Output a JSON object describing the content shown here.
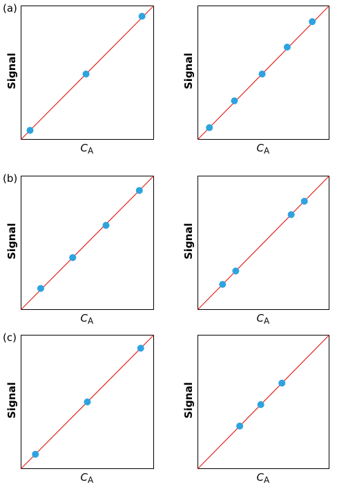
{
  "chart_data": [
    {
      "type": "scatter",
      "row": "(a)",
      "ylabel": "Signal",
      "xlabel": "C",
      "xlabel_sub": "A",
      "line": "y = x",
      "points": [
        [
          0.07,
          0.07
        ],
        [
          0.49,
          0.49
        ],
        [
          0.91,
          0.92
        ]
      ],
      "xlim": [
        0,
        1
      ],
      "ylim": [
        0,
        1
      ]
    },
    {
      "type": "scatter",
      "row": "",
      "ylabel": "Signal",
      "xlabel": "C",
      "xlabel_sub": "A",
      "line": "y = x",
      "points": [
        [
          0.09,
          0.09
        ],
        [
          0.28,
          0.29
        ],
        [
          0.49,
          0.49
        ],
        [
          0.68,
          0.69
        ],
        [
          0.87,
          0.88
        ]
      ],
      "xlim": [
        0,
        1
      ],
      "ylim": [
        0,
        1
      ]
    },
    {
      "type": "scatter",
      "row": "(b)",
      "ylabel": "Signal",
      "xlabel": "C",
      "xlabel_sub": "A",
      "line": "y = x",
      "points": [
        [
          0.15,
          0.16
        ],
        [
          0.39,
          0.39
        ],
        [
          0.64,
          0.63
        ],
        [
          0.89,
          0.89
        ]
      ],
      "xlim": [
        0,
        1
      ],
      "ylim": [
        0,
        1
      ]
    },
    {
      "type": "scatter",
      "row": "",
      "ylabel": "Signal",
      "xlabel": "C",
      "xlabel_sub": "A",
      "line": "y = x",
      "points": [
        [
          0.19,
          0.19
        ],
        [
          0.29,
          0.29
        ],
        [
          0.71,
          0.71
        ],
        [
          0.81,
          0.81
        ]
      ],
      "xlim": [
        0,
        1
      ],
      "ylim": [
        0,
        1
      ]
    },
    {
      "type": "scatter",
      "row": "(c)",
      "ylabel": "Signal",
      "xlabel": "C",
      "xlabel_sub": "A",
      "line": "y = x",
      "points": [
        [
          0.11,
          0.11
        ],
        [
          0.5,
          0.5
        ],
        [
          0.9,
          0.9
        ]
      ],
      "xlim": [
        0,
        1
      ],
      "ylim": [
        0,
        1
      ]
    },
    {
      "type": "scatter",
      "row": "",
      "ylabel": "Signal",
      "xlabel": "C",
      "xlabel_sub": "A",
      "line": "y = x",
      "points": [
        [
          0.32,
          0.32
        ],
        [
          0.48,
          0.48
        ],
        [
          0.64,
          0.64
        ]
      ],
      "xlim": [
        0,
        1
      ],
      "ylim": [
        0,
        1
      ]
    }
  ],
  "colors": {
    "point": "#2ea3e0",
    "line": "#e2231a",
    "frame": "#000000"
  }
}
